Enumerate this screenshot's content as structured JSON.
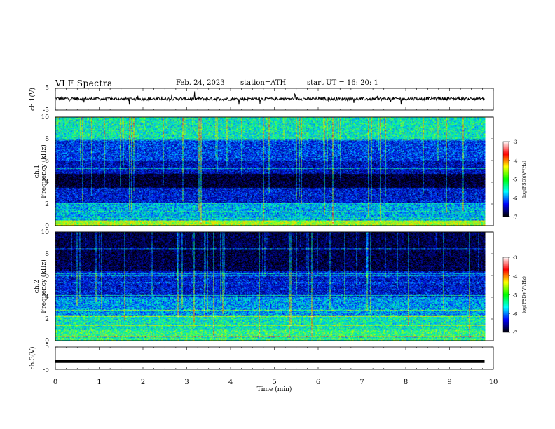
{
  "header": {
    "title": "VLF  Spectra",
    "date": "Feb. 24, 2023",
    "station": "station=ATH",
    "start": "start  UT  =    16: 20: 1"
  },
  "colorbar": {
    "label": "log(PSD)(V²/Hz)",
    "ticks": [
      "-3",
      "-4",
      "-5",
      "-6",
      "-7"
    ],
    "colors": [
      "#ffffff",
      "#ff0000",
      "#ffff00",
      "#00ff00",
      "#00ffff",
      "#0000ff",
      "#000000"
    ]
  },
  "chart_data": [
    {
      "type": "line",
      "name": "ch1-waveform",
      "ylabel": "ch.1(V)",
      "ylim": [
        -5,
        5
      ],
      "yticks": [
        "5",
        "-5"
      ],
      "x": [
        0,
        1,
        2,
        3,
        4,
        5,
        6,
        7,
        8,
        9,
        9.8
      ],
      "y": [
        0.3,
        0.2,
        0.1,
        0.2,
        0.1,
        0.2,
        0.2,
        0.1,
        0.2,
        0.3,
        0.2
      ]
    },
    {
      "type": "heatmap",
      "name": "ch1-spectrogram",
      "ylabel": "ch.1\nFrequency  (kHz)",
      "ylim": [
        0,
        10
      ],
      "yticks": [
        "0",
        "2",
        "4",
        "6",
        "8",
        "10"
      ],
      "xlim": [
        0,
        10
      ],
      "z_range": [
        -7,
        -3
      ],
      "bands_khz": [
        {
          "from": 0,
          "to": 0.5,
          "level": -4.5
        },
        {
          "from": 0.5,
          "to": 2.0,
          "level": -5.5
        },
        {
          "from": 2.0,
          "to": 3.5,
          "level": -6.2
        },
        {
          "from": 3.5,
          "to": 4.8,
          "level": -6.9
        },
        {
          "from": 4.8,
          "to": 6.0,
          "level": -6.3
        },
        {
          "from": 6.0,
          "to": 8.0,
          "level": -6.0
        },
        {
          "from": 8.0,
          "to": 10.0,
          "level": -5.2
        }
      ]
    },
    {
      "type": "heatmap",
      "name": "ch2-spectrogram",
      "ylabel": "ch.2\nFrequency  (kHz)",
      "ylim": [
        0,
        10
      ],
      "yticks": [
        "0",
        "2",
        "4",
        "6",
        "8",
        "10"
      ],
      "xlim": [
        0,
        10
      ],
      "z_range": [
        -7,
        -3
      ],
      "bands_khz": [
        {
          "from": 0,
          "to": 1.0,
          "level": -5.0
        },
        {
          "from": 1.0,
          "to": 2.3,
          "level": -5.2
        },
        {
          "from": 2.3,
          "to": 4.0,
          "level": -5.6
        },
        {
          "from": 4.0,
          "to": 6.5,
          "level": -6.2
        },
        {
          "from": 6.5,
          "to": 10.0,
          "level": -6.8
        }
      ]
    },
    {
      "type": "line",
      "name": "ch3-waveform",
      "ylabel": "ch.3(V)",
      "ylim": [
        -5,
        5
      ],
      "yticks": [
        "5",
        "-5"
      ],
      "x": [
        0,
        9.8
      ],
      "y": [
        -1.5,
        -1.5
      ]
    }
  ],
  "xaxis": {
    "label": "Time  (min)",
    "ticks": [
      "0",
      "1",
      "2",
      "3",
      "4",
      "5",
      "6",
      "7",
      "8",
      "9",
      "10"
    ],
    "xlim": [
      0,
      10
    ]
  }
}
